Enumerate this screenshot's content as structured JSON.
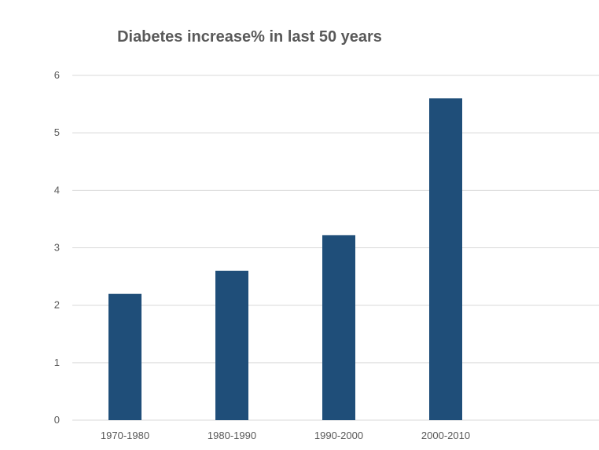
{
  "chart_data": {
    "type": "bar",
    "title": "Diabetes increase% in last 50 years",
    "xlabel": "",
    "ylabel": "",
    "categories": [
      "1970-1980",
      "1980-1990",
      "1990-2000",
      "2000-2010"
    ],
    "values": [
      2.2,
      2.6,
      3.22,
      5.6
    ],
    "ylim": [
      0,
      6
    ],
    "yticks": [
      "0",
      "1",
      "2",
      "3",
      "4",
      "5",
      "6"
    ],
    "grid": true,
    "legend": "none",
    "bar_color": "#1F4E79",
    "grid_color": "#D9D9D9"
  }
}
